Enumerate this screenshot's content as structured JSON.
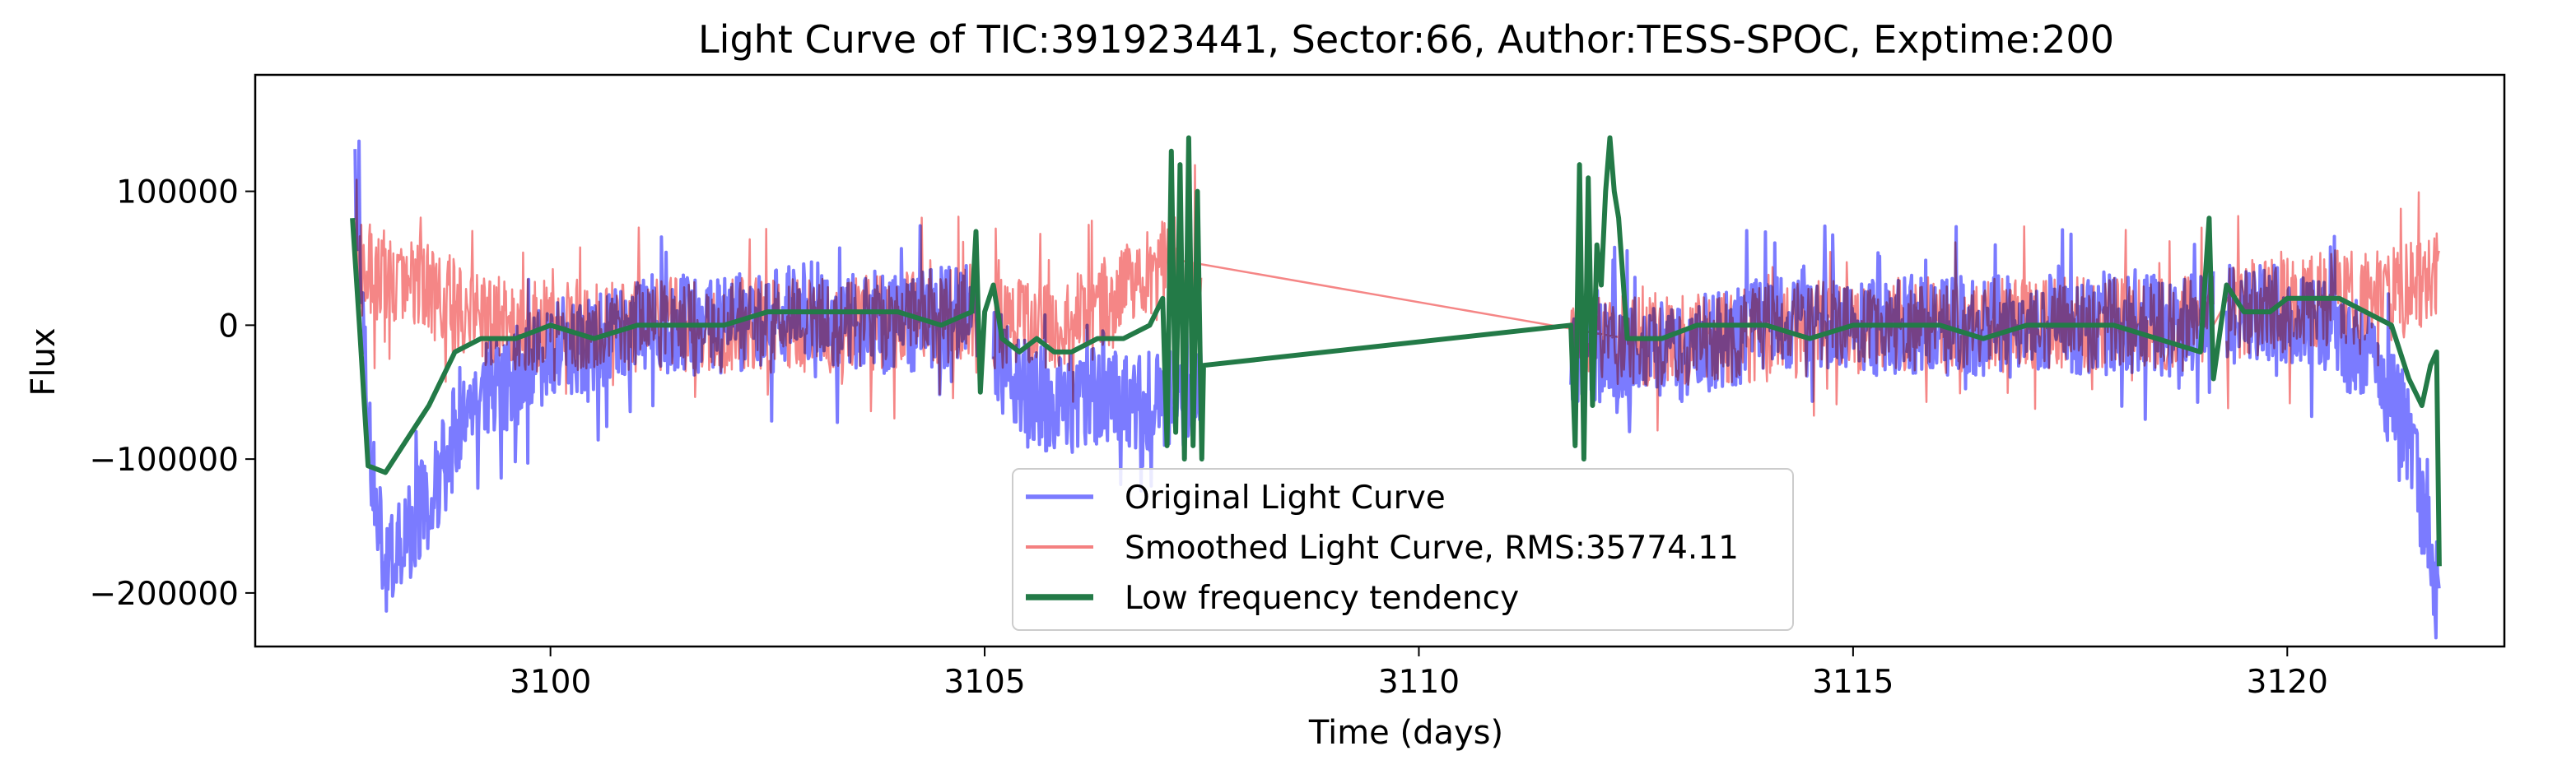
{
  "chart_data": {
    "type": "line",
    "title": "Light Curve of TIC:391923441, Sector:66, Author:TESS-SPOC, Exptime:200",
    "xlabel": "Time (days)",
    "ylabel": "Flux",
    "xlim": [
      3096.6,
      3122.5
    ],
    "ylim": [
      -240000,
      187000
    ],
    "x_ticks": [
      3100,
      3105,
      3110,
      3115,
      3120
    ],
    "x_tick_labels": [
      "3100",
      "3105",
      "3110",
      "3115",
      "3120"
    ],
    "y_ticks": [
      100000,
      0,
      -100000,
      -200000
    ],
    "y_tick_labels": [
      "100000",
      "0",
      "−100000",
      "−200000"
    ],
    "grid": false,
    "legend": "lower-center",
    "segments": [
      [
        3097.75,
        3104.92
      ],
      [
        3105.1,
        3107.5
      ],
      [
        3111.75,
        3119.15
      ],
      [
        3119.3,
        3121.75
      ]
    ],
    "series": [
      {
        "name": "Original Light Curve",
        "color": "#7b7bff",
        "amplitude": 38000,
        "points": [
          [
            3097.75,
            120000
          ],
          [
            3097.9,
            -80000
          ],
          [
            3098.1,
            -180000
          ],
          [
            3098.4,
            -150000
          ],
          [
            3098.7,
            -120000
          ],
          [
            3099.0,
            -60000
          ],
          [
            3099.5,
            -40000
          ],
          [
            3100.0,
            -20000
          ],
          [
            3101.0,
            0
          ],
          [
            3102.0,
            0
          ],
          [
            3103.0,
            10000
          ],
          [
            3104.0,
            0
          ],
          [
            3104.9,
            10000
          ],
          [
            3105.3,
            -40000
          ],
          [
            3105.8,
            -60000
          ],
          [
            3106.5,
            -50000
          ],
          [
            3107.0,
            -60000
          ],
          [
            3107.5,
            -50000
          ],
          [
            3112.3,
            -20000
          ],
          [
            3113.0,
            -20000
          ],
          [
            3114.0,
            0
          ],
          [
            3115.0,
            0
          ],
          [
            3116.0,
            0
          ],
          [
            3117.0,
            0
          ],
          [
            3118.0,
            0
          ],
          [
            3119.0,
            0
          ],
          [
            3119.5,
            10000
          ],
          [
            3120.0,
            10000
          ],
          [
            3120.5,
            0
          ],
          [
            3121.0,
            -30000
          ],
          [
            3121.4,
            -80000
          ],
          [
            3121.75,
            -210000
          ]
        ]
      },
      {
        "name": "Smoothed Light Curve, RMS:35774.11",
        "color": "#f48080",
        "amplitude": 36000,
        "points": [
          [
            3097.75,
            40000
          ],
          [
            3098.0,
            40000
          ],
          [
            3098.5,
            30000
          ],
          [
            3099.0,
            10000
          ],
          [
            3099.5,
            0
          ],
          [
            3100.5,
            0
          ],
          [
            3102.0,
            0
          ],
          [
            3103.5,
            0
          ],
          [
            3104.9,
            10000
          ],
          [
            3105.2,
            0
          ],
          [
            3106.0,
            0
          ],
          [
            3107.0,
            40000
          ],
          [
            3107.1,
            50000
          ],
          [
            3112.0,
            -10000
          ],
          [
            3112.5,
            -10000
          ],
          [
            3113.5,
            -10000
          ],
          [
            3115.0,
            0
          ],
          [
            3117.0,
            0
          ],
          [
            3119.0,
            0
          ],
          [
            3119.5,
            10000
          ],
          [
            3120.5,
            20000
          ],
          [
            3121.0,
            20000
          ],
          [
            3121.5,
            30000
          ],
          [
            3121.75,
            40000
          ]
        ]
      },
      {
        "name": "Low frequency tendency",
        "color": "#237a47",
        "amplitude": 0,
        "points": [
          [
            3097.72,
            80000
          ],
          [
            3097.8,
            0
          ],
          [
            3097.9,
            -105000
          ],
          [
            3098.1,
            -110000
          ],
          [
            3098.3,
            -90000
          ],
          [
            3098.6,
            -60000
          ],
          [
            3098.9,
            -20000
          ],
          [
            3099.2,
            -10000
          ],
          [
            3099.6,
            -10000
          ],
          [
            3100.0,
            0
          ],
          [
            3100.5,
            -10000
          ],
          [
            3101.0,
            0
          ],
          [
            3101.5,
            0
          ],
          [
            3102.0,
            0
          ],
          [
            3102.5,
            10000
          ],
          [
            3103.0,
            10000
          ],
          [
            3103.5,
            10000
          ],
          [
            3104.0,
            10000
          ],
          [
            3104.5,
            0
          ],
          [
            3104.85,
            10000
          ],
          [
            3104.9,
            70000
          ],
          [
            3104.95,
            -50000
          ],
          [
            3105.0,
            10000
          ],
          [
            3105.1,
            30000
          ],
          [
            3105.2,
            -10000
          ],
          [
            3105.4,
            -20000
          ],
          [
            3105.6,
            -10000
          ],
          [
            3105.8,
            -20000
          ],
          [
            3106.0,
            -20000
          ],
          [
            3106.3,
            -10000
          ],
          [
            3106.6,
            -10000
          ],
          [
            3106.9,
            0
          ],
          [
            3107.05,
            20000
          ],
          [
            3107.1,
            -90000
          ],
          [
            3107.15,
            130000
          ],
          [
            3107.2,
            -80000
          ],
          [
            3107.25,
            120000
          ],
          [
            3107.3,
            -100000
          ],
          [
            3107.35,
            140000
          ],
          [
            3107.4,
            -90000
          ],
          [
            3107.45,
            100000
          ],
          [
            3107.5,
            -100000
          ],
          [
            3107.52,
            -30000
          ],
          [
            3111.75,
            0
          ],
          [
            3111.8,
            -90000
          ],
          [
            3111.85,
            120000
          ],
          [
            3111.9,
            -100000
          ],
          [
            3111.95,
            110000
          ],
          [
            3112.0,
            -60000
          ],
          [
            3112.05,
            60000
          ],
          [
            3112.1,
            30000
          ],
          [
            3112.15,
            100000
          ],
          [
            3112.2,
            140000
          ],
          [
            3112.25,
            100000
          ],
          [
            3112.3,
            80000
          ],
          [
            3112.4,
            -10000
          ],
          [
            3112.8,
            -10000
          ],
          [
            3113.2,
            0
          ],
          [
            3113.6,
            0
          ],
          [
            3114.0,
            0
          ],
          [
            3114.5,
            -10000
          ],
          [
            3115.0,
            0
          ],
          [
            3115.5,
            0
          ],
          [
            3116.0,
            0
          ],
          [
            3116.5,
            -10000
          ],
          [
            3117.0,
            0
          ],
          [
            3117.5,
            0
          ],
          [
            3118.0,
            0
          ],
          [
            3118.5,
            -10000
          ],
          [
            3119.0,
            -20000
          ],
          [
            3119.1,
            80000
          ],
          [
            3119.15,
            -40000
          ],
          [
            3119.3,
            30000
          ],
          [
            3119.5,
            10000
          ],
          [
            3119.8,
            10000
          ],
          [
            3120.0,
            20000
          ],
          [
            3120.3,
            20000
          ],
          [
            3120.6,
            20000
          ],
          [
            3120.9,
            10000
          ],
          [
            3121.2,
            0
          ],
          [
            3121.4,
            -40000
          ],
          [
            3121.55,
            -60000
          ],
          [
            3121.65,
            -30000
          ],
          [
            3121.72,
            -20000
          ],
          [
            3121.75,
            -180000
          ]
        ]
      }
    ]
  }
}
